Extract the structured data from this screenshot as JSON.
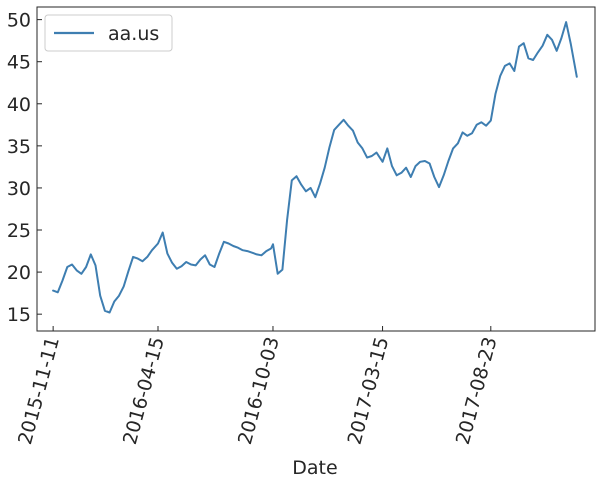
{
  "chart_data": {
    "type": "line",
    "title": "",
    "xlabel": "Date",
    "ylabel": "",
    "x_tick_labels": [
      "2015-11-11",
      "2016-04-15",
      "2016-10-03",
      "2017-03-15",
      "2017-08-23"
    ],
    "y_ticks": [
      15,
      20,
      25,
      30,
      35,
      40,
      45,
      50
    ],
    "ylim": [
      13.0,
      51.5
    ],
    "xlim": [
      "2015-10-18",
      "2018-01-25"
    ],
    "grid": false,
    "legend": {
      "placement": "top-left"
    },
    "colors": {
      "series": "#3e7eb1",
      "axes": "#262626"
    },
    "series": [
      {
        "name": "aa.us",
        "x": [
          "2015-11-11",
          "2015-11-18",
          "2015-11-25",
          "2015-12-02",
          "2015-12-09",
          "2015-12-16",
          "2015-12-23",
          "2015-12-30",
          "2016-01-06",
          "2016-01-13",
          "2016-01-20",
          "2016-01-27",
          "2016-02-03",
          "2016-02-10",
          "2016-02-17",
          "2016-02-24",
          "2016-03-02",
          "2016-03-09",
          "2016-03-16",
          "2016-03-23",
          "2016-03-30",
          "2016-04-06",
          "2016-04-15",
          "2016-04-22",
          "2016-04-29",
          "2016-05-06",
          "2016-05-13",
          "2016-05-20",
          "2016-05-27",
          "2016-06-03",
          "2016-06-10",
          "2016-06-17",
          "2016-06-24",
          "2016-07-01",
          "2016-07-08",
          "2016-07-15",
          "2016-07-22",
          "2016-07-29",
          "2016-08-05",
          "2016-08-12",
          "2016-08-19",
          "2016-08-26",
          "2016-09-02",
          "2016-09-09",
          "2016-09-16",
          "2016-09-23",
          "2016-09-30",
          "2016-10-03",
          "2016-10-10",
          "2016-10-17",
          "2016-10-24",
          "2016-10-31",
          "2016-11-07",
          "2016-11-14",
          "2016-11-21",
          "2016-11-28",
          "2016-12-05",
          "2016-12-12",
          "2016-12-19",
          "2016-12-26",
          "2017-01-02",
          "2017-01-09",
          "2017-01-16",
          "2017-01-23",
          "2017-01-30",
          "2017-02-06",
          "2017-02-13",
          "2017-02-20",
          "2017-02-27",
          "2017-03-06",
          "2017-03-15",
          "2017-03-22",
          "2017-03-29",
          "2017-04-05",
          "2017-04-12",
          "2017-04-19",
          "2017-04-26",
          "2017-05-03",
          "2017-05-10",
          "2017-05-17",
          "2017-05-24",
          "2017-05-31",
          "2017-06-07",
          "2017-06-14",
          "2017-06-21",
          "2017-06-28",
          "2017-07-05",
          "2017-07-12",
          "2017-07-19",
          "2017-07-26",
          "2017-08-02",
          "2017-08-09",
          "2017-08-16",
          "2017-08-23",
          "2017-08-30",
          "2017-09-06",
          "2017-09-13",
          "2017-09-20",
          "2017-09-27",
          "2017-10-04",
          "2017-10-11",
          "2017-10-18",
          "2017-10-25",
          "2017-11-01",
          "2017-11-08",
          "2017-11-15",
          "2017-11-22",
          "2017-11-29",
          "2017-12-06",
          "2017-12-13",
          "2017-12-20",
          "2017-12-29"
        ],
        "values": [
          17.8,
          17.6,
          19.0,
          20.6,
          20.9,
          20.2,
          19.8,
          20.6,
          22.1,
          20.8,
          17.2,
          15.4,
          15.2,
          16.5,
          17.2,
          18.3,
          20.1,
          21.8,
          21.6,
          21.3,
          21.8,
          22.6,
          23.4,
          24.7,
          22.2,
          21.1,
          20.4,
          20.7,
          21.2,
          20.9,
          20.8,
          21.5,
          22.0,
          20.9,
          20.6,
          22.2,
          23.6,
          23.4,
          23.1,
          22.9,
          22.6,
          22.5,
          22.3,
          22.1,
          22.0,
          22.5,
          22.8,
          23.3,
          19.8,
          20.3,
          26.2,
          30.9,
          31.4,
          30.4,
          29.6,
          30.0,
          28.9,
          30.5,
          32.4,
          34.8,
          36.9,
          37.5,
          38.1,
          37.4,
          36.8,
          35.4,
          34.7,
          33.6,
          33.8,
          34.2,
          33.1,
          34.7,
          32.6,
          31.5,
          31.8,
          32.4,
          31.3,
          32.6,
          33.1,
          33.2,
          32.9,
          31.3,
          30.1,
          31.5,
          33.2,
          34.7,
          35.3,
          36.6,
          36.2,
          36.5,
          37.5,
          37.8,
          37.4,
          38.0,
          41.2,
          43.3,
          44.5,
          44.8,
          43.9,
          46.8,
          47.2,
          45.4,
          45.2,
          46.1,
          46.9,
          48.2,
          47.6,
          46.3,
          47.8,
          49.7,
          47.1,
          43.2
        ]
      }
    ]
  }
}
